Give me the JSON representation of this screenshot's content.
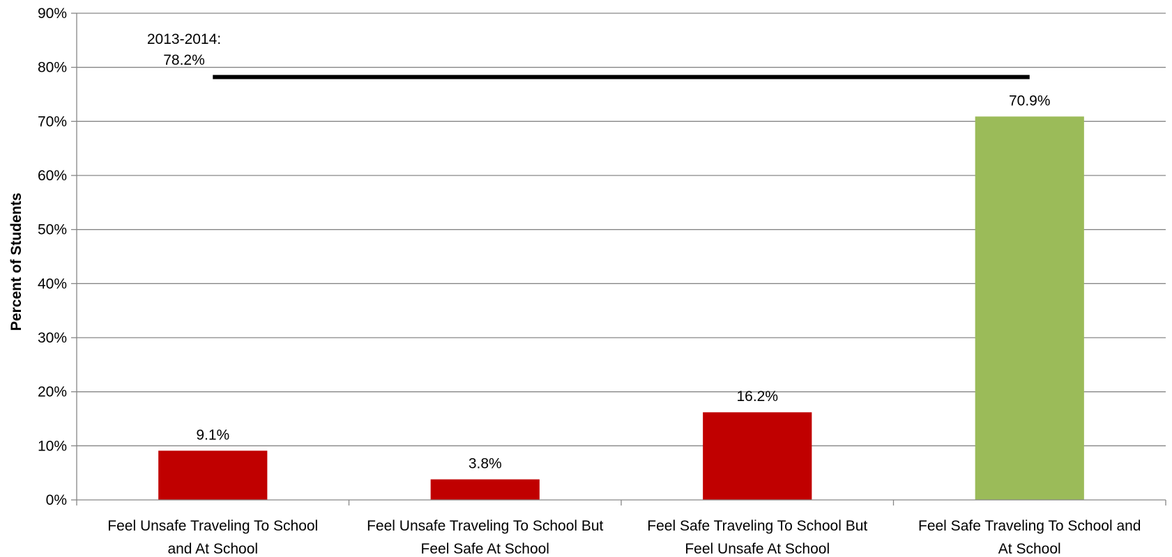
{
  "chart_data": {
    "type": "bar",
    "categories": [
      [
        "Feel Unsafe Traveling To School",
        "and At School"
      ],
      [
        "Feel Unsafe Traveling To School But",
        "Feel Safe At School"
      ],
      [
        "Feel Safe Traveling To School But",
        "Feel Unsafe At School"
      ],
      [
        "Feel Safe Traveling To School and",
        "At School"
      ]
    ],
    "values": [
      9.1,
      3.8,
      16.2,
      70.9
    ],
    "data_labels": [
      "9.1%",
      "3.8%",
      "16.2%",
      "70.9%"
    ],
    "bar_colors": [
      "#c00000",
      "#c00000",
      "#c00000",
      "#9bbb59"
    ],
    "ylabel": "Percent of Students",
    "ylim": [
      0,
      90
    ],
    "yticks": [
      0,
      10,
      20,
      30,
      40,
      50,
      60,
      70,
      80,
      90
    ],
    "ytick_labels": [
      "0%",
      "10%",
      "20%",
      "30%",
      "40%",
      "50%",
      "60%",
      "70%",
      "80%",
      "90%"
    ],
    "grid": true,
    "reference_line": {
      "value": 78.2,
      "label_lines": [
        "2013-2014:",
        "78.2%"
      ],
      "color": "#000000"
    }
  }
}
